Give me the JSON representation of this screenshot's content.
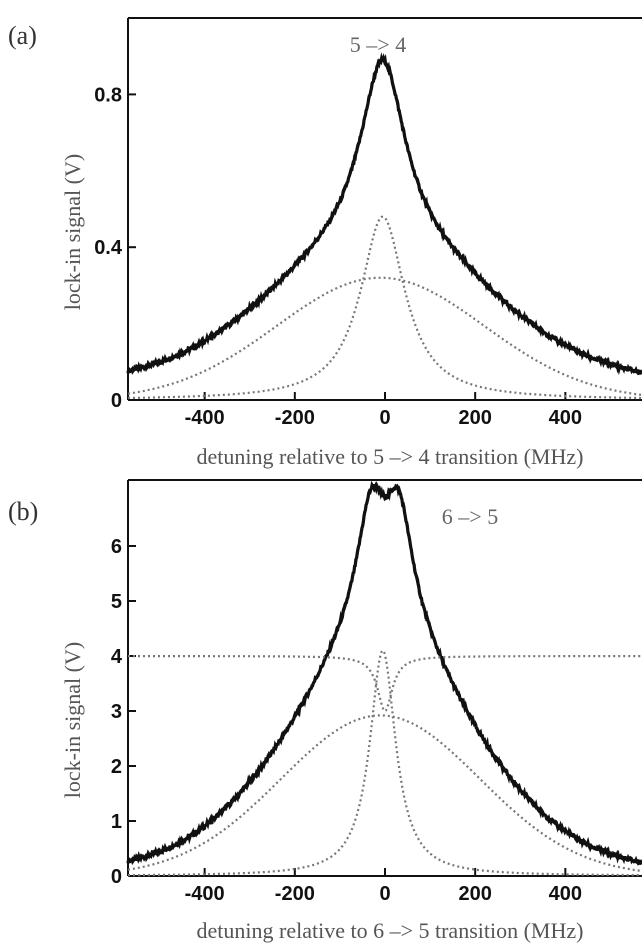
{
  "chart_data": [
    {
      "panel_label": "(a)",
      "type": "line",
      "annotation": "5 –> 4",
      "xlabel": "detuning relative to 5 –> 4 transition (MHz)",
      "ylabel": "lock-in signal (V)",
      "xlim": [
        -570,
        570
      ],
      "ylim": [
        0,
        1.0
      ],
      "x_ticks": [
        -400,
        -200,
        0,
        200,
        400
      ],
      "x_tick_labels": [
        "-400",
        "-200",
        "0",
        "200",
        "400"
      ],
      "y_ticks": [
        0,
        0.4,
        0.8
      ],
      "y_tick_labels": [
        "0",
        "0.4",
        "0.8"
      ],
      "model": {
        "narrow_lorentzian": {
          "center": -5,
          "amplitude": 0.48,
          "hwhm": 60
        },
        "broad_gaussian": {
          "center": -10,
          "amplitude": 0.32,
          "sigma": 230
        },
        "baseline_lorentzian": {
          "center": 0,
          "amplitude": 0.09,
          "hwhm": 700
        }
      },
      "series": [
        {
          "style": "measured",
          "color": "#111111"
        },
        {
          "style": "fit",
          "color": "#111111"
        },
        {
          "style": "component-narrow",
          "color": "#777777"
        },
        {
          "style": "component-broad",
          "color": "#777777"
        }
      ]
    },
    {
      "panel_label": "(b)",
      "type": "line",
      "annotation": "6 –> 5",
      "xlabel": "detuning relative to 6 –> 5 transition (MHz)",
      "ylabel": "lock-in signal (V)",
      "xlim": [
        -570,
        570
      ],
      "ylim": [
        0,
        7.2
      ],
      "x_ticks": [
        -400,
        -200,
        0,
        200,
        400
      ],
      "x_tick_labels": [
        "-400",
        "-200",
        "0",
        "200",
        "400"
      ],
      "y_ticks": [
        0,
        1,
        2,
        3,
        4,
        5,
        6
      ],
      "y_tick_labels": [
        "0",
        "1",
        "2",
        "3",
        "4",
        "5",
        "6"
      ],
      "model": {
        "narrow_lorentzian": {
          "center": -5,
          "amplitude": 4.1,
          "hwhm": 35
        },
        "broad_gaussian": {
          "center": -10,
          "amplitude": 2.92,
          "sigma": 220
        },
        "dip": {
          "center": 0,
          "baseline": 4.0,
          "depth": 1.0,
          "hwhm": 20
        },
        "wing_lorentzian": {
          "center": 0,
          "amplitude": 2.0,
          "hwhm": 160
        }
      },
      "series": [
        {
          "style": "measured",
          "color": "#111111"
        },
        {
          "style": "fit",
          "color": "#111111"
        },
        {
          "style": "component-narrow",
          "color": "#777777"
        },
        {
          "style": "component-broad",
          "color": "#777777"
        },
        {
          "style": "component-dip",
          "color": "#777777"
        }
      ]
    }
  ]
}
